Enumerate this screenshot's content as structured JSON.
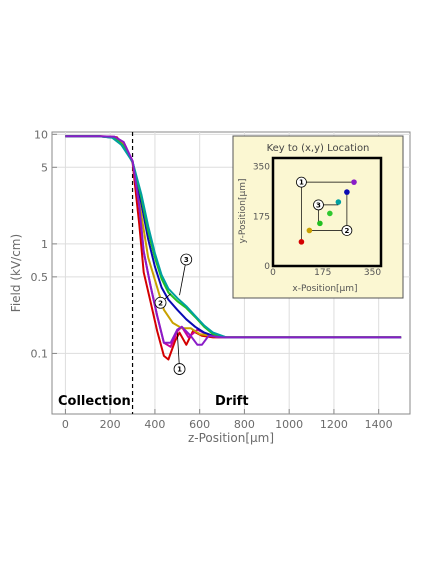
{
  "chart_data": {
    "type": "line",
    "x_axis": {
      "label": "z-Position[μm]",
      "range": [
        -60,
        1540
      ],
      "ticks": [
        0,
        200,
        400,
        600,
        800,
        1000,
        1200,
        1400
      ]
    },
    "y_axis": {
      "label": "Field (kV/cm)",
      "scale": "log",
      "range": [
        0.028,
        10.5
      ],
      "ticks": [
        {
          "value": 10,
          "label": "10"
        },
        {
          "value": 5,
          "label": "5"
        },
        {
          "value": 1,
          "label": "1"
        },
        {
          "value": 0.5,
          "label": "0.5"
        },
        {
          "value": 0.1,
          "label": "0.1"
        }
      ]
    },
    "grid": true,
    "boundary_z": 300,
    "regions": [
      {
        "label": "Collection",
        "x_data": 100
      },
      {
        "label": "Drift",
        "x_data": 530
      }
    ],
    "series": [
      {
        "color": "#d40000",
        "points": [
          [
            0,
            9.6
          ],
          [
            150,
            9.6
          ],
          [
            230,
            9.4
          ],
          [
            270,
            7.5
          ],
          [
            300,
            5.5
          ],
          [
            330,
            1.5
          ],
          [
            350,
            0.55
          ],
          [
            380,
            0.3
          ],
          [
            410,
            0.16
          ],
          [
            440,
            0.095
          ],
          [
            460,
            0.088
          ],
          [
            490,
            0.13
          ],
          [
            510,
            0.155
          ],
          [
            540,
            0.12
          ],
          [
            570,
            0.16
          ],
          [
            610,
            0.145
          ],
          [
            660,
            0.14
          ],
          [
            800,
            0.14
          ],
          [
            1000,
            0.14
          ],
          [
            1500,
            0.14
          ]
        ]
      },
      {
        "color": "#cc0099",
        "points": [
          [
            0,
            9.6
          ],
          [
            150,
            9.6
          ],
          [
            220,
            9.5
          ],
          [
            260,
            8.5
          ],
          [
            300,
            5.7
          ],
          [
            330,
            2.2
          ],
          [
            350,
            0.85
          ],
          [
            380,
            0.42
          ],
          [
            410,
            0.22
          ],
          [
            440,
            0.125
          ],
          [
            470,
            0.115
          ],
          [
            500,
            0.16
          ],
          [
            520,
            0.175
          ],
          [
            550,
            0.14
          ],
          [
            590,
            0.165
          ],
          [
            630,
            0.15
          ],
          [
            680,
            0.14
          ],
          [
            800,
            0.14
          ],
          [
            1000,
            0.14
          ],
          [
            1500,
            0.14
          ]
        ]
      },
      {
        "color": "#c9a100",
        "points": [
          [
            0,
            9.6
          ],
          [
            150,
            9.6
          ],
          [
            220,
            9.4
          ],
          [
            260,
            8.0
          ],
          [
            300,
            5.6
          ],
          [
            340,
            1.8
          ],
          [
            370,
            0.75
          ],
          [
            410,
            0.4
          ],
          [
            440,
            0.25
          ],
          [
            480,
            0.19
          ],
          [
            520,
            0.17
          ],
          [
            560,
            0.17
          ],
          [
            600,
            0.15
          ],
          [
            650,
            0.145
          ],
          [
            700,
            0.14
          ],
          [
            800,
            0.14
          ],
          [
            1000,
            0.14
          ],
          [
            1500,
            0.14
          ]
        ]
      },
      {
        "color": "#0a0ab4",
        "points": [
          [
            0,
            9.6
          ],
          [
            150,
            9.6
          ],
          [
            220,
            9.3
          ],
          [
            260,
            7.8
          ],
          [
            300,
            5.6
          ],
          [
            340,
            2.3
          ],
          [
            370,
            1.1
          ],
          [
            400,
            0.62
          ],
          [
            430,
            0.4
          ],
          [
            460,
            0.31
          ],
          [
            500,
            0.25
          ],
          [
            540,
            0.205
          ],
          [
            580,
            0.175
          ],
          [
            620,
            0.155
          ],
          [
            660,
            0.145
          ],
          [
            720,
            0.14
          ],
          [
            800,
            0.14
          ],
          [
            1000,
            0.14
          ],
          [
            1500,
            0.14
          ]
        ]
      },
      {
        "color": "#22c022",
        "points": [
          [
            0,
            9.6
          ],
          [
            150,
            9.6
          ],
          [
            220,
            9.3
          ],
          [
            260,
            7.8
          ],
          [
            300,
            5.6
          ],
          [
            340,
            2.6
          ],
          [
            370,
            1.3
          ],
          [
            400,
            0.75
          ],
          [
            430,
            0.48
          ],
          [
            460,
            0.36
          ],
          [
            500,
            0.3
          ],
          [
            540,
            0.26
          ],
          [
            580,
            0.215
          ],
          [
            620,
            0.175
          ],
          [
            660,
            0.15
          ],
          [
            720,
            0.14
          ],
          [
            800,
            0.14
          ],
          [
            1000,
            0.14
          ],
          [
            1500,
            0.14
          ]
        ]
      },
      {
        "color": "#00a0a0",
        "points": [
          [
            0,
            9.6
          ],
          [
            150,
            9.6
          ],
          [
            210,
            9.3
          ],
          [
            250,
            8.0
          ],
          [
            300,
            5.6
          ],
          [
            340,
            2.8
          ],
          [
            370,
            1.45
          ],
          [
            400,
            0.82
          ],
          [
            430,
            0.52
          ],
          [
            460,
            0.39
          ],
          [
            500,
            0.32
          ],
          [
            540,
            0.27
          ],
          [
            580,
            0.22
          ],
          [
            620,
            0.18
          ],
          [
            660,
            0.155
          ],
          [
            720,
            0.14
          ],
          [
            800,
            0.14
          ],
          [
            1000,
            0.14
          ],
          [
            1500,
            0.14
          ]
        ]
      },
      {
        "color": "#8a1cc8",
        "points": [
          [
            0,
            9.6
          ],
          [
            150,
            9.6
          ],
          [
            220,
            9.5
          ],
          [
            260,
            8.5
          ],
          [
            300,
            5.7
          ],
          [
            330,
            2.2
          ],
          [
            350,
            0.85
          ],
          [
            380,
            0.42
          ],
          [
            410,
            0.22
          ],
          [
            440,
            0.125
          ],
          [
            470,
            0.125
          ],
          [
            500,
            0.165
          ],
          [
            520,
            0.175
          ],
          [
            560,
            0.145
          ],
          [
            590,
            0.12
          ],
          [
            610,
            0.12
          ],
          [
            640,
            0.145
          ],
          [
            700,
            0.14
          ],
          [
            800,
            0.14
          ],
          [
            1000,
            0.14
          ],
          [
            1500,
            0.14
          ]
        ]
      }
    ],
    "annotations": [
      {
        "label": "1",
        "x": 510,
        "y": 0.072,
        "target_x": 500,
        "target_y": 0.155
      },
      {
        "label": "2",
        "x": 425,
        "y": 0.29,
        "target_x": 470,
        "target_y": 0.35
      },
      {
        "label": "3",
        "x": 540,
        "y": 0.72,
        "target_x": 510,
        "target_y": 0.34
      }
    ],
    "inset": {
      "title": "Key to (x,y) Location",
      "xlabel": "x-Position[μm]",
      "ylabel": "y-Position[μm]",
      "x_ticks": [
        0,
        175,
        350
      ],
      "y_ticks": [
        0,
        175,
        350
      ],
      "range": [
        0,
        380
      ],
      "points": [
        {
          "x": 100,
          "y": 85,
          "color": "#d40000"
        },
        {
          "x": 128,
          "y": 125,
          "color": "#c9a100"
        },
        {
          "x": 165,
          "y": 150,
          "color": "#22c022"
        },
        {
          "x": 200,
          "y": 185,
          "color": "#2fc82f"
        },
        {
          "x": 230,
          "y": 225,
          "color": "#00a0a0"
        },
        {
          "x": 260,
          "y": 260,
          "color": "#0a0ab4"
        },
        {
          "x": 285,
          "y": 295,
          "color": "#8a1cc8"
        }
      ],
      "markers": [
        {
          "label": "1",
          "x": 100,
          "y": 295
        },
        {
          "label": "2",
          "x": 260,
          "y": 125
        },
        {
          "label": "3",
          "x": 160,
          "y": 215
        }
      ]
    }
  }
}
